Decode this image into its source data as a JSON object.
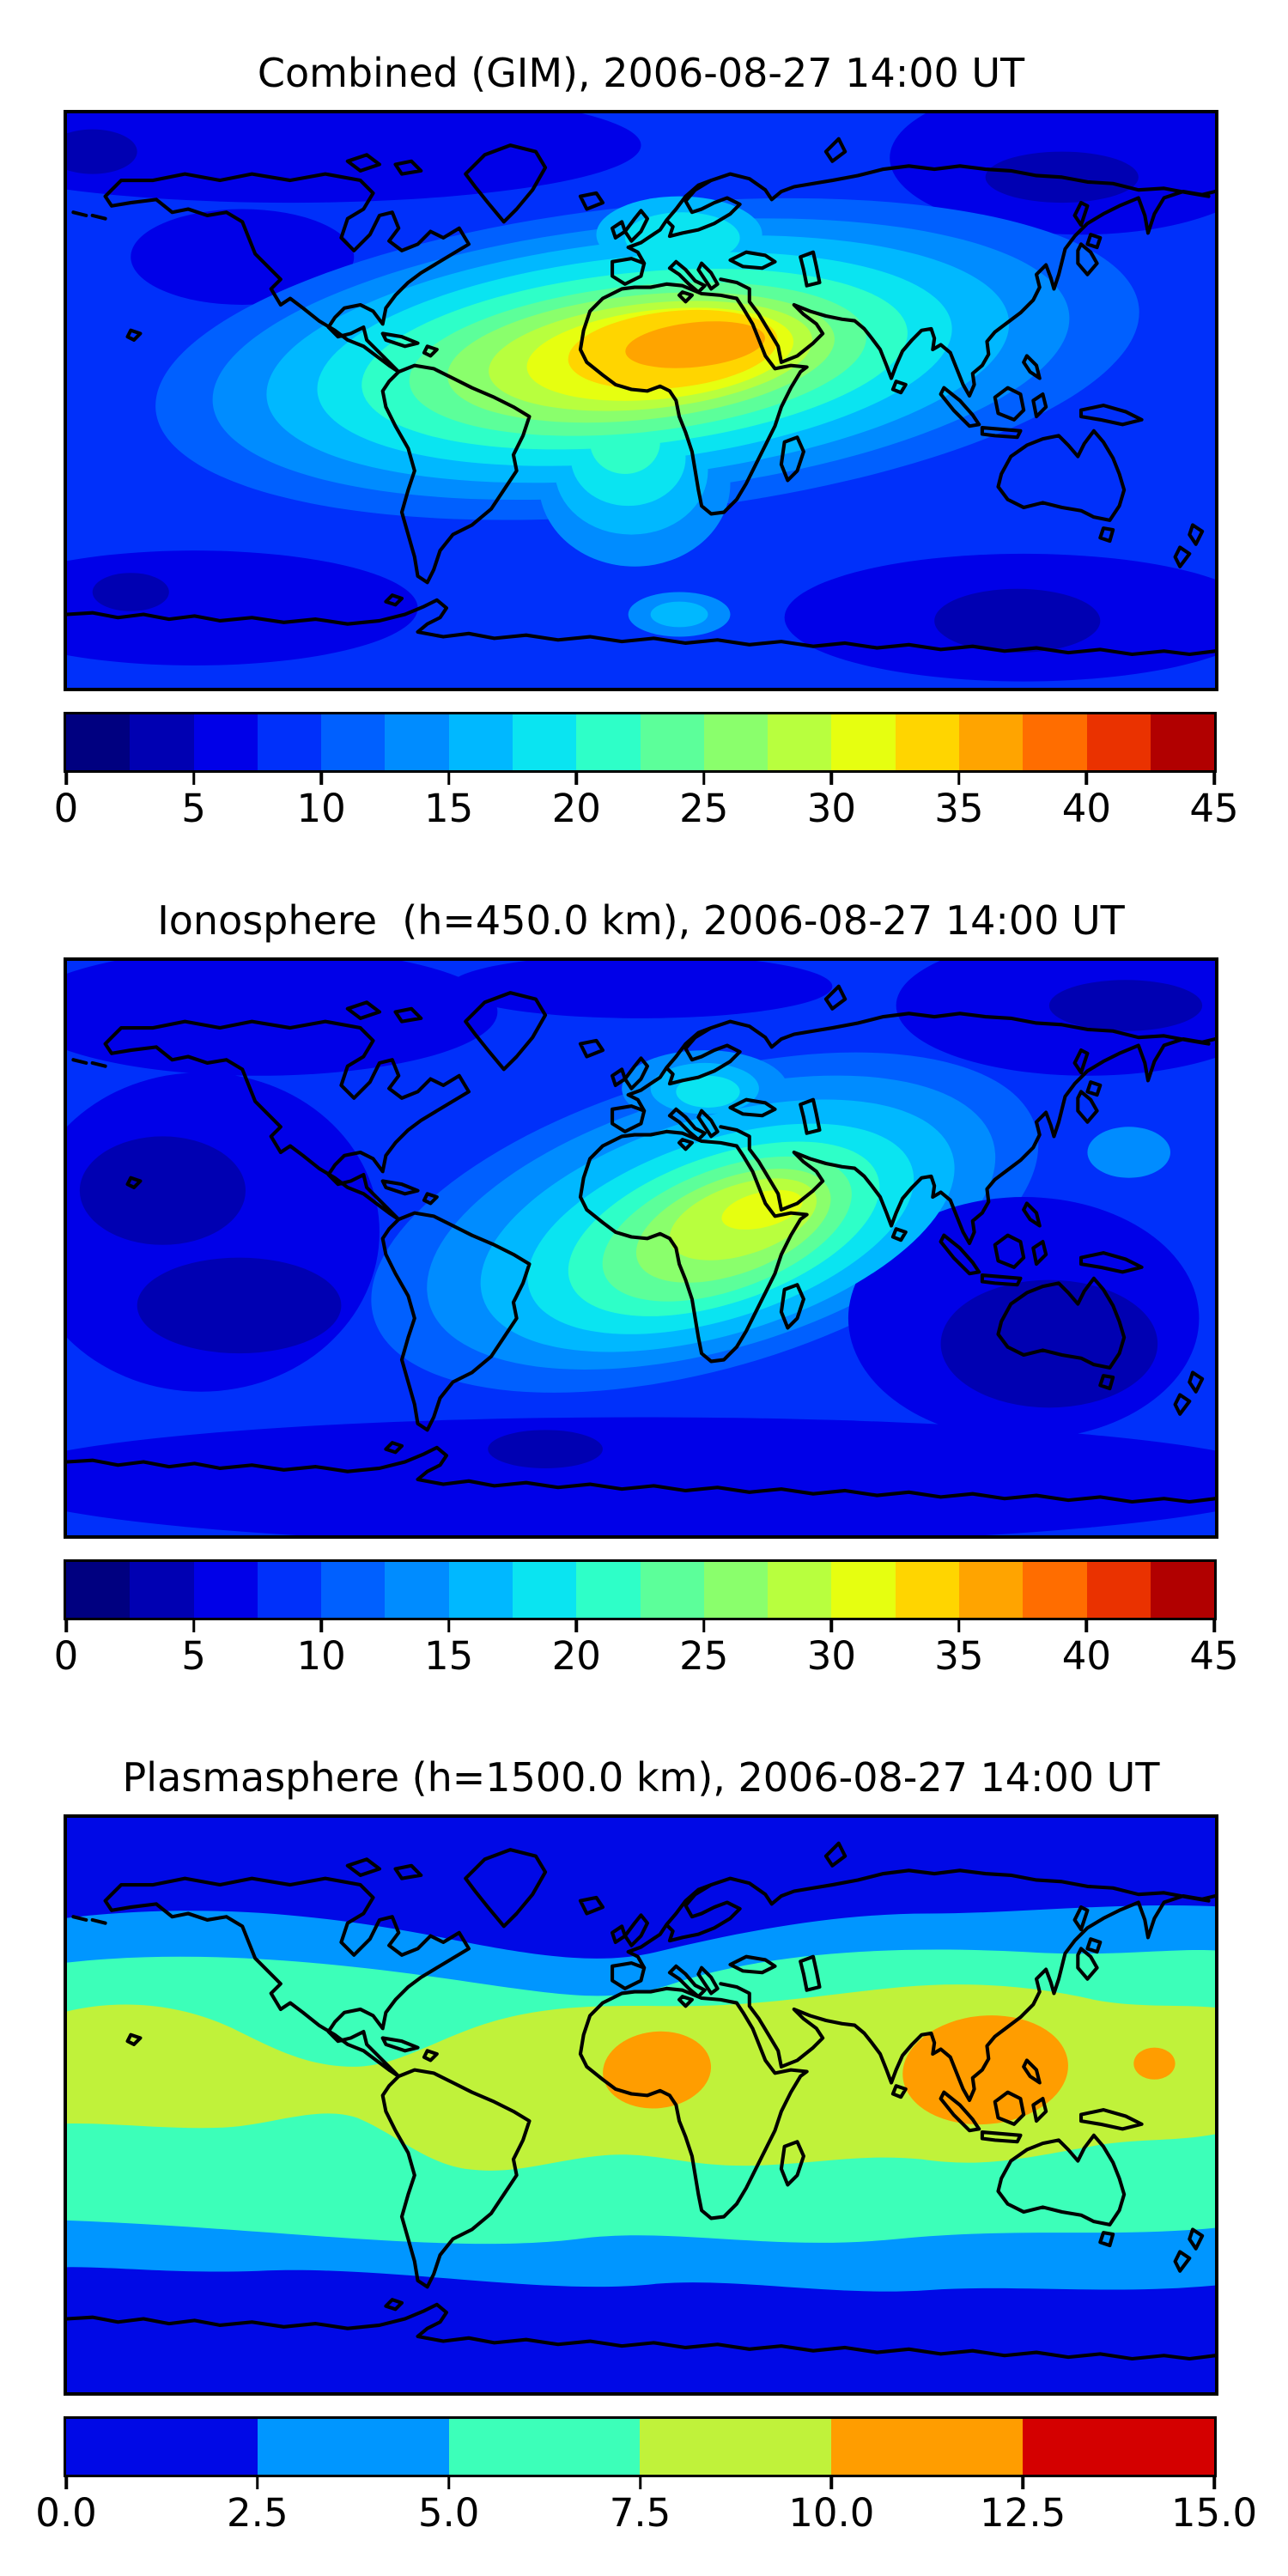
{
  "palettes": {
    "jet18": [
      "#000080",
      "#0000b2",
      "#0000e8",
      "#0030fa",
      "#0060ff",
      "#008cff",
      "#00b8ff",
      "#0ae4f1",
      "#2effc8",
      "#5cff9a",
      "#8aff6c",
      "#b8ff3e",
      "#e6ff10",
      "#ffd500",
      "#ffa400",
      "#ff6d00",
      "#ea3200",
      "#b10000"
    ],
    "jet6": [
      "#0009e6",
      "#0096ff",
      "#3cffb9",
      "#c0f23a",
      "#ff9d00",
      "#d40000"
    ]
  },
  "figures": [
    {
      "title": "Combined (GIM), 2006-08-27 14:00 UT",
      "colorbar": {
        "palette": "jet18",
        "min": 0,
        "max": 45,
        "level_step": 2.5,
        "ticks": [
          "0",
          "5",
          "10",
          "15",
          "20",
          "25",
          "30",
          "35",
          "40",
          "45"
        ]
      }
    },
    {
      "title": "Ionosphere  (h=450.0 km), 2006-08-27 14:00 UT",
      "colorbar": {
        "palette": "jet18",
        "min": 0,
        "max": 45,
        "level_step": 2.5,
        "ticks": [
          "0",
          "5",
          "10",
          "15",
          "20",
          "25",
          "30",
          "35",
          "40",
          "45"
        ]
      }
    },
    {
      "title": "Plasmasphere (h=1500.0 km), 2006-08-27 14:00 UT",
      "colorbar": {
        "palette": "jet6",
        "min": 0,
        "max": 15,
        "level_step": 2.5,
        "ticks": [
          "0.0",
          "2.5",
          "5.0",
          "7.5",
          "10.0",
          "12.5",
          "15.0"
        ]
      }
    }
  ],
  "chart_data": [
    {
      "type": "heatmap",
      "subtype": "filled-contour world map",
      "title": "Combined (GIM), 2006-08-27 14:00 UT",
      "projection": "equirectangular, lon -180..180, lat -90..90",
      "colormap": "jet, discrete",
      "value_range": [
        0,
        45
      ],
      "contour_step": 2.5,
      "colorbar_ticks": [
        0,
        5,
        10,
        15,
        20,
        25,
        30,
        35,
        40,
        45
      ],
      "legend_position": "below map, horizontal",
      "features": [
        {
          "name": "primary maximum",
          "value_band": "35-37.5",
          "location": "elongated orange core over Sahara and Arabian Peninsula, lat ~10-25N, lon ~-5..50E"
        },
        {
          "name": "broad enhancement",
          "value_band": "20-35",
          "location": "tropical belt from eastern South America across Africa to India"
        },
        {
          "name": "secondary bright area",
          "value_band": "15-22.5",
          "location": "Central Europe / Scandinavia and Central America"
        },
        {
          "name": "southward tongue",
          "value_band": "12.5-20",
          "location": "South Atlantic between South America and Africa down to ~45S"
        },
        {
          "name": "minimum",
          "value_band": "2.5-5",
          "location": "northeast Siberia, north Pacific and high southern latitudes near Australia sector"
        }
      ]
    },
    {
      "type": "heatmap",
      "subtype": "filled-contour world map",
      "title": "Ionosphere  (h=450.0 km), 2006-08-27 14:00 UT",
      "projection": "equirectangular, lon -180..180, lat -90..90",
      "colormap": "jet, discrete",
      "value_range": [
        0,
        45
      ],
      "contour_step": 2.5,
      "colorbar_ticks": [
        0,
        5,
        10,
        15,
        20,
        25,
        30,
        35,
        40,
        45
      ],
      "legend_position": "below map, horizontal",
      "features": [
        {
          "name": "primary maximum",
          "value_band": "27.5-32.5",
          "location": "yellow-green core over northeast Africa / Arabia, tilted SW-NE oval"
        },
        {
          "name": "broad enhancement",
          "value_band": "15-27.5",
          "location": "oval covering Africa and adjacent Atlantic / Indian Ocean"
        },
        {
          "name": "secondary patch",
          "value_band": "17.5-20",
          "location": "cyan patch over central Europe"
        },
        {
          "name": "deep minimum",
          "value_band": "2.5-5",
          "location": "large dark region in eastern equatorial and south Pacific"
        },
        {
          "name": "minimum",
          "value_band": "2.5-7.5",
          "location": "polar latitudes and Indian Ocean / Australia sector"
        }
      ]
    },
    {
      "type": "heatmap",
      "subtype": "filled-contour world map",
      "title": "Plasmasphere (h=1500.0 km), 2006-08-27 14:00 UT",
      "projection": "equirectangular, lon -180..180, lat -90..90",
      "colormap": "jet, discrete, 6 levels",
      "value_range": [
        0,
        15
      ],
      "contour_step": 2.5,
      "colorbar_ticks": [
        0.0,
        2.5,
        5.0,
        7.5,
        10.0,
        12.5,
        15.0
      ],
      "legend_position": "below map, horizontal",
      "features": [
        {
          "name": "polar background",
          "value_band": "0-2.5",
          "location": "dark blue poleward of ~55 deg latitude both hemispheres"
        },
        {
          "name": "mid-latitude band",
          "value_band": "2.5-5",
          "location": "azure wavy band ~45-58 deg N and S"
        },
        {
          "name": "sub-tropical band",
          "value_band": "5-7.5",
          "location": "turquoise band ~25-45 deg N and S"
        },
        {
          "name": "equatorial belt",
          "value_band": "7.5-10",
          "location": "yellow-green belt ~25N-20S spanning all longitudes, pinched over eastern Pacific"
        },
        {
          "name": "maximum blob 1",
          "value_band": "10-12.5",
          "location": "orange oval over West Africa, lat ~0-24N"
        },
        {
          "name": "maximum blob 2",
          "value_band": "10-12.5",
          "location": "large orange oval over India / Southeast Asia, lat ~25N-5S"
        },
        {
          "name": "maximum blob 3",
          "value_band": "10-12.5",
          "location": "small orange spot in west Pacific near lon 160E, lat ~15N"
        }
      ]
    }
  ]
}
